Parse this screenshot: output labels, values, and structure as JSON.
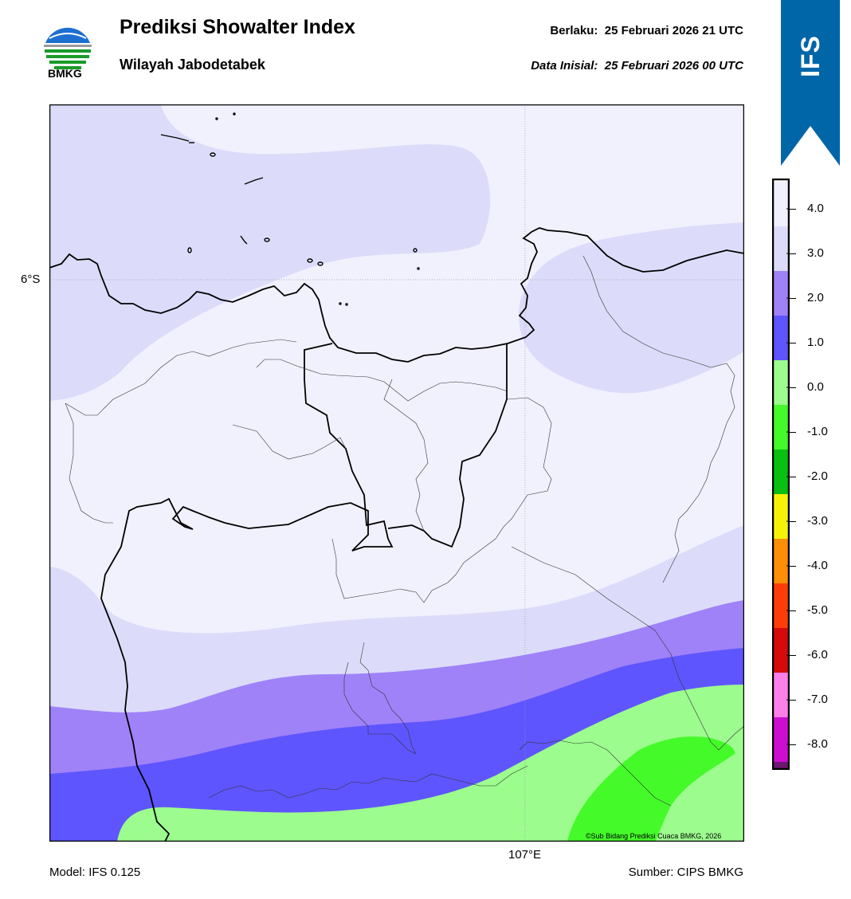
{
  "header": {
    "title": "Prediksi Showalter Index",
    "subtitle": "Wilayah Jabodetabek",
    "valid_label": "Berlaku:",
    "valid_time": "25 Februari 2026 21 UTC",
    "init_label": "Data Inisial:",
    "init_time": "25 Februari 2026 00 UTC"
  },
  "logo": {
    "text": "BMKG",
    "icon": "bmkg-logo"
  },
  "ribbon": {
    "text": "IFS",
    "color": "#0066a8"
  },
  "axes": {
    "lat_label": "6°S",
    "lon_label": "107°E"
  },
  "footer": {
    "model": "Model: IFS 0.125",
    "source": "Sumber: CIPS BMKG",
    "credit": "©Sub Bidang Prediksi Cuaca BMKG, 2026"
  },
  "colorbar": {
    "colors": [
      "#f1f0fd",
      "#dcdcfa",
      "#9f82f8",
      "#5f55fe",
      "#9cfc8e",
      "#44fb29",
      "#07c010",
      "#f7f107",
      "#fe8d07",
      "#ff3c07",
      "#d50a0a",
      "#ff7fe8",
      "#cd0ed0",
      "#6c1772"
    ],
    "ticks": [
      "4.0",
      "3.0",
      "2.0",
      "1.0",
      "0.0",
      "-1.0",
      "-2.0",
      "-3.0",
      "-4.0",
      "-5.0",
      "-6.0",
      "-7.0",
      "-8.0"
    ]
  }
}
